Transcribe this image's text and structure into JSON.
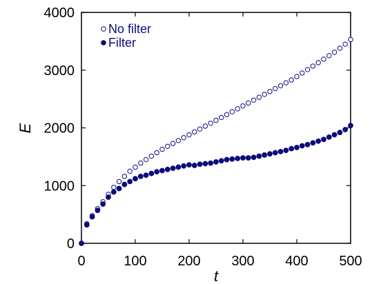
{
  "chart_data": {
    "type": "scatter",
    "xlabel": "t",
    "ylabel": "E",
    "xlim": [
      0,
      500
    ],
    "ylim": [
      0,
      4000
    ],
    "xticks": [
      0,
      100,
      200,
      300,
      400,
      500
    ],
    "yticks": [
      0,
      1000,
      2000,
      3000,
      4000
    ],
    "legend_position": "top-left",
    "grid": false,
    "series_color": "#0b0b7a",
    "series": [
      {
        "name": "No filter",
        "marker": "open-circle",
        "x": [
          0,
          10,
          20,
          30,
          40,
          50,
          60,
          70,
          80,
          90,
          100,
          110,
          120,
          130,
          140,
          150,
          160,
          170,
          180,
          190,
          200,
          210,
          220,
          230,
          240,
          250,
          260,
          270,
          280,
          290,
          300,
          310,
          320,
          330,
          340,
          350,
          360,
          370,
          380,
          390,
          400,
          410,
          420,
          430,
          440,
          450,
          460,
          470,
          480,
          490,
          500
        ],
        "y": [
          0,
          340,
          480,
          600,
          720,
          850,
          970,
          1070,
          1160,
          1250,
          1320,
          1390,
          1450,
          1510,
          1570,
          1630,
          1680,
          1730,
          1780,
          1830,
          1880,
          1930,
          1980,
          2030,
          2080,
          2130,
          2180,
          2230,
          2280,
          2330,
          2380,
          2430,
          2480,
          2530,
          2580,
          2630,
          2680,
          2730,
          2780,
          2830,
          2890,
          2950,
          3010,
          3070,
          3130,
          3190,
          3250,
          3310,
          3380,
          3450,
          3530
        ]
      },
      {
        "name": "Filter",
        "marker": "filled-circle",
        "x": [
          0,
          10,
          20,
          30,
          40,
          50,
          60,
          70,
          80,
          90,
          100,
          110,
          120,
          130,
          140,
          150,
          160,
          170,
          180,
          190,
          200,
          210,
          220,
          230,
          240,
          250,
          260,
          270,
          280,
          290,
          300,
          310,
          320,
          330,
          340,
          350,
          360,
          370,
          380,
          390,
          400,
          410,
          420,
          430,
          440,
          450,
          460,
          470,
          480,
          490,
          500
        ],
        "y": [
          0,
          320,
          460,
          570,
          680,
          800,
          890,
          950,
          1020,
          1070,
          1120,
          1160,
          1180,
          1210,
          1240,
          1260,
          1280,
          1300,
          1320,
          1340,
          1360,
          1350,
          1370,
          1380,
          1390,
          1410,
          1430,
          1450,
          1460,
          1470,
          1480,
          1480,
          1490,
          1510,
          1530,
          1550,
          1570,
          1590,
          1610,
          1640,
          1660,
          1690,
          1710,
          1740,
          1770,
          1800,
          1840,
          1880,
          1920,
          1970,
          2040
        ]
      }
    ]
  }
}
